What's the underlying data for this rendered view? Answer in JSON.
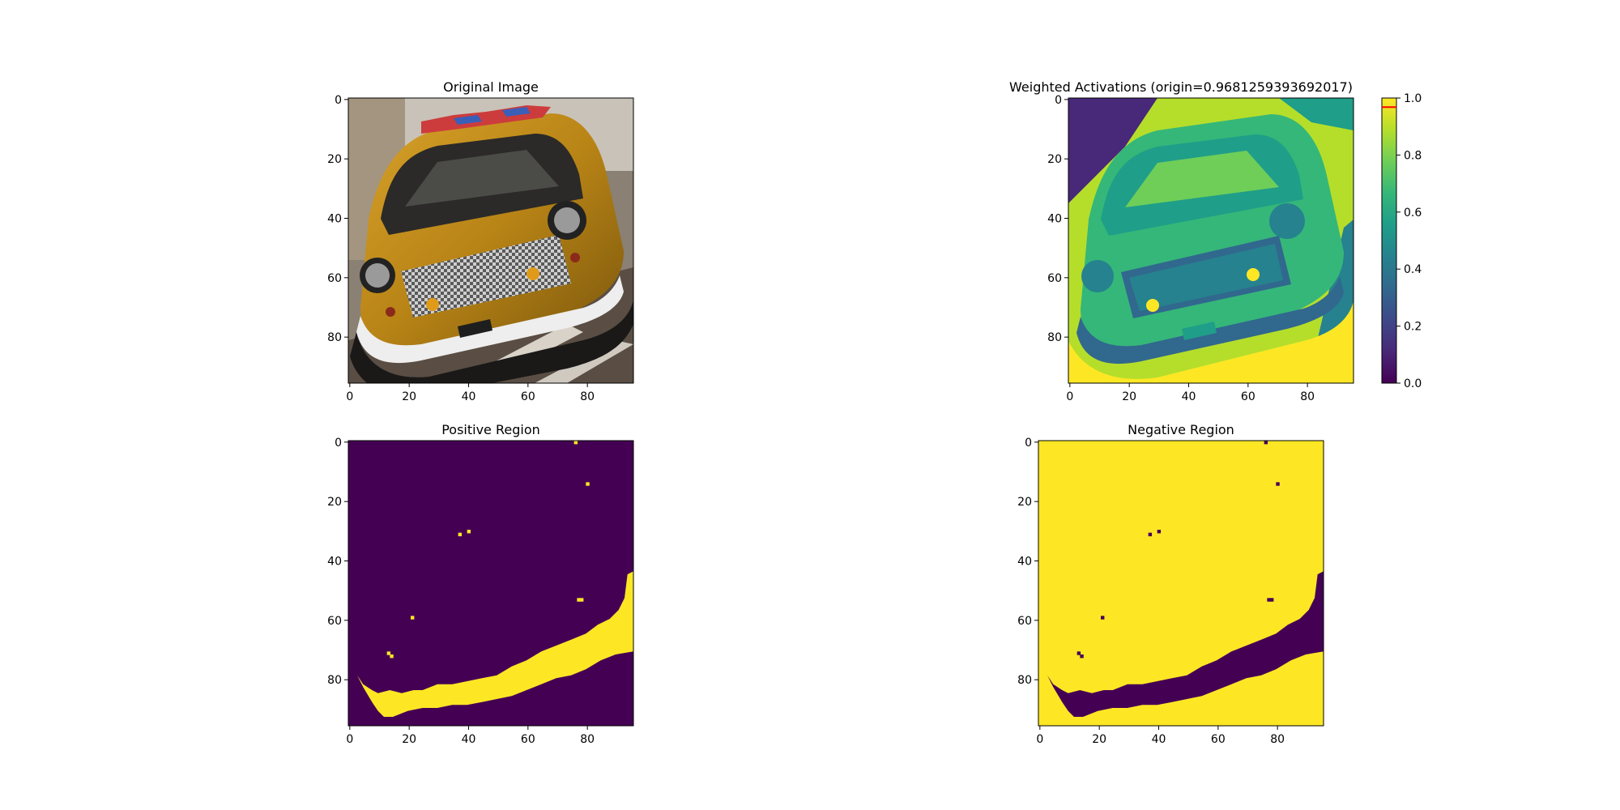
{
  "chart_data": [
    {
      "type": "image",
      "title": "Original Image",
      "image_size": [
        96,
        96
      ],
      "xticks": [
        0,
        20,
        40,
        60,
        80
      ],
      "yticks": [
        0,
        20,
        40,
        60,
        80
      ],
      "content": "photo"
    },
    {
      "type": "heatmap",
      "title": "Weighted Activations (origin=0.9681259393692017)",
      "image_size": [
        96,
        96
      ],
      "xticks": [
        0,
        20,
        40,
        60,
        80
      ],
      "yticks": [
        0,
        20,
        40,
        60,
        80
      ],
      "colormap": "viridis",
      "colorbar": {
        "min": 0.0,
        "max": 1.0,
        "ticks": [
          "0.0",
          "0.2",
          "0.4",
          "0.6",
          "0.8",
          "1.0"
        ],
        "marker_value": 0.9681259393692017,
        "marker_color": "#ff0000"
      }
    },
    {
      "type": "heatmap",
      "title": "Positive Region",
      "image_size": [
        96,
        96
      ],
      "xticks": [
        0,
        20,
        40,
        60,
        80
      ],
      "yticks": [
        0,
        20,
        40,
        60,
        80
      ],
      "background_color": "#440154",
      "region_color": "#fde725",
      "region_lower_edge": [
        [
          3,
          79
        ],
        [
          5,
          83
        ],
        [
          8,
          88
        ],
        [
          10,
          91
        ],
        [
          12,
          93
        ],
        [
          15,
          93
        ],
        [
          20,
          91
        ],
        [
          25,
          90
        ],
        [
          30,
          90
        ],
        [
          35,
          89
        ],
        [
          40,
          89
        ],
        [
          45,
          88
        ],
        [
          50,
          87
        ],
        [
          55,
          86
        ],
        [
          60,
          84
        ],
        [
          65,
          82
        ],
        [
          70,
          80
        ],
        [
          75,
          79
        ],
        [
          80,
          77
        ],
        [
          85,
          74
        ],
        [
          90,
          72
        ],
        [
          96,
          71
        ]
      ],
      "region_upper_edge": [
        [
          3,
          79
        ],
        [
          5,
          82
        ],
        [
          8,
          84
        ],
        [
          10,
          85
        ],
        [
          14,
          84
        ],
        [
          18,
          85
        ],
        [
          22,
          84
        ],
        [
          25,
          84
        ],
        [
          30,
          82
        ],
        [
          35,
          82
        ],
        [
          40,
          81
        ],
        [
          45,
          80
        ],
        [
          50,
          79
        ],
        [
          55,
          76
        ],
        [
          60,
          74
        ],
        [
          65,
          71
        ],
        [
          70,
          69
        ],
        [
          75,
          67
        ],
        [
          80,
          65
        ],
        [
          84,
          62
        ],
        [
          88,
          60
        ],
        [
          91,
          57
        ],
        [
          93,
          53
        ],
        [
          94,
          45
        ],
        [
          96,
          44
        ]
      ],
      "specks": [
        [
          76,
          0
        ],
        [
          80,
          14
        ],
        [
          37,
          31
        ],
        [
          40,
          30
        ],
        [
          21,
          59
        ],
        [
          77,
          53
        ],
        [
          78,
          53
        ],
        [
          13,
          71
        ],
        [
          14,
          72
        ]
      ]
    },
    {
      "type": "heatmap",
      "title": "Negative Region",
      "image_size": [
        96,
        96
      ],
      "xticks": [
        0,
        20,
        40,
        60,
        80
      ],
      "yticks": [
        0,
        20,
        40,
        60,
        80
      ],
      "background_color": "#fde725",
      "region_color": "#440154",
      "mirror_of": "Positive Region"
    }
  ],
  "colors": {
    "viridis": [
      "#440154",
      "#482878",
      "#3e4989",
      "#31688e",
      "#26828e",
      "#1f9e89",
      "#35b779",
      "#6ece58",
      "#b5de2b",
      "#fde725"
    ]
  }
}
